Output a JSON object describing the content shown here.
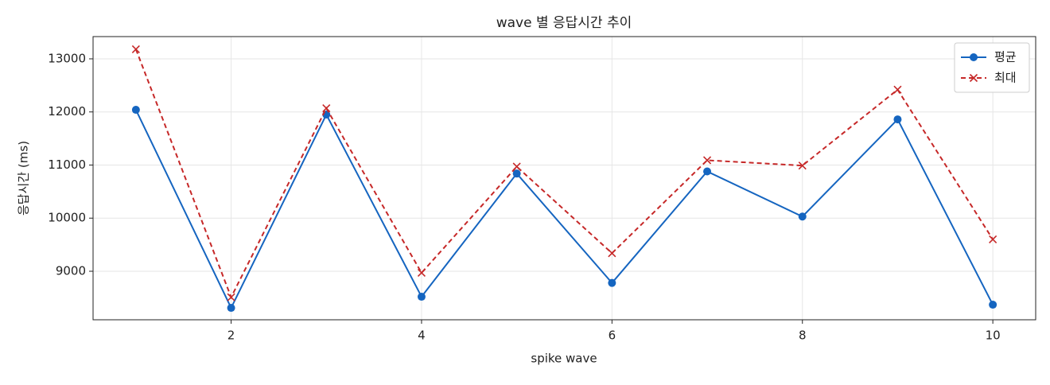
{
  "chart_data": {
    "type": "line",
    "title": "wave 별 응답시간 추이",
    "x_label": "spike wave",
    "y_label": "응답시간 (ms)",
    "x": [
      1,
      2,
      3,
      4,
      5,
      6,
      7,
      8,
      9,
      10
    ],
    "series": [
      {
        "name": "평균",
        "color": "#1565c0",
        "dash": "solid",
        "marker": "circle",
        "values": [
          12040,
          8310,
          11950,
          8520,
          10840,
          8780,
          10880,
          10030,
          11860,
          8370
        ]
      },
      {
        "name": "최대",
        "color": "#c62828",
        "dash": "dashed",
        "marker": "x",
        "values": [
          13180,
          8510,
          12070,
          8970,
          10970,
          9340,
          11090,
          10990,
          12420,
          9600
        ]
      }
    ],
    "xlim": [
      0.55,
      10.45
    ],
    "xticks": [
      2,
      4,
      6,
      8,
      10
    ],
    "ylim": [
      8086,
      13419
    ],
    "yticks": [
      9000,
      10000,
      11000,
      12000,
      13000
    ],
    "grid": true,
    "legend": "upper right"
  }
}
